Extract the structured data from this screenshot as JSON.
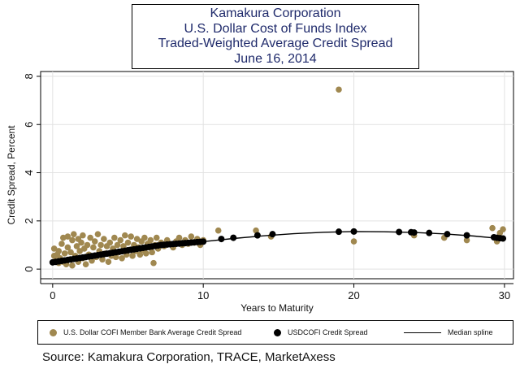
{
  "colors": {
    "member": "#a08850",
    "cofi": "#000000",
    "spline": "#000000",
    "title": "#1f2a6b",
    "grid": "#e2e2e2"
  },
  "source": "Source: Kamakura Corporation, TRACE, MarketAxess",
  "chart_data": {
    "type": "scatter",
    "title": [
      "Kamakura Corporation",
      "U.S. Dollar Cost of Funds Index",
      "Traded-Weighted Average Credit Spread",
      "June 16, 2014"
    ],
    "xlabel": "Years to Maturity",
    "ylabel": "Credit Spread, Percent",
    "xlim": [
      -0.8,
      30.6
    ],
    "ylim": [
      -0.4,
      8.2
    ],
    "xticks": [
      0,
      10,
      20,
      30
    ],
    "yticks": [
      0,
      2,
      4,
      6,
      8
    ],
    "grid": true,
    "legend_position": "bottom",
    "legend": [
      "U.S. Dollar COFI Member Bank Average Credit Spread",
      "USDCOFI Credit Spread",
      "Median spline"
    ],
    "series": [
      {
        "name": "U.S. Dollar COFI Member Bank Average Credit Spread",
        "type": "scatter",
        "points": [
          [
            0.1,
            0.85
          ],
          [
            0.1,
            0.55
          ],
          [
            0.2,
            0.35
          ],
          [
            0.3,
            0.6
          ],
          [
            0.4,
            0.25
          ],
          [
            0.4,
            0.75
          ],
          [
            0.5,
            0.45
          ],
          [
            0.6,
            1.05
          ],
          [
            0.7,
            0.3
          ],
          [
            0.7,
            1.3
          ],
          [
            0.8,
            0.65
          ],
          [
            0.9,
            0.2
          ],
          [
            1.0,
            0.9
          ],
          [
            1.0,
            1.35
          ],
          [
            1.1,
            0.4
          ],
          [
            1.2,
            0.7
          ],
          [
            1.3,
            1.2
          ],
          [
            1.3,
            0.15
          ],
          [
            1.4,
            1.45
          ],
          [
            1.5,
            0.55
          ],
          [
            1.6,
            0.95
          ],
          [
            1.7,
            1.25
          ],
          [
            1.7,
            0.3
          ],
          [
            1.8,
            0.75
          ],
          [
            1.9,
            1.1
          ],
          [
            2.0,
            0.45
          ],
          [
            2.0,
            1.4
          ],
          [
            2.1,
            0.85
          ],
          [
            2.2,
            0.2
          ],
          [
            2.3,
            1.0
          ],
          [
            2.4,
            0.6
          ],
          [
            2.5,
            1.3
          ],
          [
            2.6,
            0.35
          ],
          [
            2.7,
            0.9
          ],
          [
            2.8,
            1.15
          ],
          [
            2.9,
            0.5
          ],
          [
            3.0,
            1.45
          ],
          [
            3.1,
            0.75
          ],
          [
            3.2,
            1.0
          ],
          [
            3.3,
            0.4
          ],
          [
            3.4,
            1.25
          ],
          [
            3.5,
            0.65
          ],
          [
            3.6,
            0.95
          ],
          [
            3.7,
            0.3
          ],
          [
            3.8,
            1.1
          ],
          [
            3.9,
            0.55
          ],
          [
            4.0,
            0.85
          ],
          [
            4.1,
            1.3
          ],
          [
            4.2,
            0.5
          ],
          [
            4.3,
            1.0
          ],
          [
            4.4,
            0.7
          ],
          [
            4.5,
            1.2
          ],
          [
            4.6,
            0.45
          ],
          [
            4.7,
            0.95
          ],
          [
            4.8,
            1.4
          ],
          [
            4.9,
            0.6
          ],
          [
            5.0,
            1.1
          ],
          [
            5.1,
            0.8
          ],
          [
            5.2,
            1.35
          ],
          [
            5.3,
            0.55
          ],
          [
            5.4,
            1.0
          ],
          [
            5.5,
            0.75
          ],
          [
            5.6,
            1.25
          ],
          [
            5.7,
            0.9
          ],
          [
            5.8,
            0.6
          ],
          [
            5.9,
            1.15
          ],
          [
            6.0,
            0.8
          ],
          [
            6.1,
            1.3
          ],
          [
            6.2,
            0.65
          ],
          [
            6.3,
            1.05
          ],
          [
            6.4,
            0.9
          ],
          [
            6.5,
            1.2
          ],
          [
            6.6,
            0.7
          ],
          [
            6.7,
            0.25
          ],
          [
            6.8,
            1.0
          ],
          [
            6.9,
            1.3
          ],
          [
            7.0,
            0.85
          ],
          [
            7.2,
            1.1
          ],
          [
            7.4,
            0.95
          ],
          [
            7.6,
            1.2
          ],
          [
            7.8,
            1.05
          ],
          [
            8.0,
            0.9
          ],
          [
            8.2,
            1.15
          ],
          [
            8.4,
            1.3
          ],
          [
            8.6,
            1.0
          ],
          [
            8.8,
            1.2
          ],
          [
            9.0,
            1.05
          ],
          [
            9.2,
            1.35
          ],
          [
            9.4,
            1.1
          ],
          [
            9.6,
            1.25
          ],
          [
            9.8,
            1.0
          ],
          [
            10.0,
            1.2
          ],
          [
            11.0,
            1.6
          ],
          [
            13.5,
            1.6
          ],
          [
            14.5,
            1.35
          ],
          [
            19.0,
            7.45
          ],
          [
            20.0,
            1.15
          ],
          [
            24.0,
            1.4
          ],
          [
            26.0,
            1.3
          ],
          [
            27.5,
            1.2
          ],
          [
            29.2,
            1.7
          ],
          [
            29.5,
            1.15
          ],
          [
            29.7,
            1.5
          ],
          [
            29.9,
            1.65
          ]
        ]
      },
      {
        "name": "USDCOFI Credit Spread",
        "type": "scatter",
        "points": [
          [
            0.0,
            0.28
          ],
          [
            0.2,
            0.3
          ],
          [
            0.4,
            0.32
          ],
          [
            0.6,
            0.34
          ],
          [
            0.8,
            0.36
          ],
          [
            1.0,
            0.38
          ],
          [
            1.2,
            0.4
          ],
          [
            1.4,
            0.42
          ],
          [
            1.6,
            0.44
          ],
          [
            1.8,
            0.46
          ],
          [
            2.0,
            0.48
          ],
          [
            2.2,
            0.5
          ],
          [
            2.4,
            0.52
          ],
          [
            2.6,
            0.54
          ],
          [
            2.8,
            0.56
          ],
          [
            3.0,
            0.58
          ],
          [
            3.2,
            0.6
          ],
          [
            3.4,
            0.62
          ],
          [
            3.6,
            0.64
          ],
          [
            3.8,
            0.66
          ],
          [
            4.0,
            0.68
          ],
          [
            4.2,
            0.7
          ],
          [
            4.4,
            0.72
          ],
          [
            4.6,
            0.74
          ],
          [
            4.8,
            0.76
          ],
          [
            5.0,
            0.78
          ],
          [
            5.2,
            0.8
          ],
          [
            5.4,
            0.82
          ],
          [
            5.6,
            0.84
          ],
          [
            5.8,
            0.86
          ],
          [
            6.0,
            0.88
          ],
          [
            6.2,
            0.9
          ],
          [
            6.4,
            0.92
          ],
          [
            6.6,
            0.94
          ],
          [
            6.8,
            0.96
          ],
          [
            7.0,
            0.98
          ],
          [
            7.2,
            1.0
          ],
          [
            7.4,
            1.01
          ],
          [
            7.6,
            1.02
          ],
          [
            7.8,
            1.03
          ],
          [
            8.0,
            1.04
          ],
          [
            8.2,
            1.05
          ],
          [
            8.4,
            1.06
          ],
          [
            8.6,
            1.07
          ],
          [
            8.8,
            1.08
          ],
          [
            9.0,
            1.09
          ],
          [
            9.2,
            1.1
          ],
          [
            9.4,
            1.11
          ],
          [
            9.6,
            1.12
          ],
          [
            9.8,
            1.13
          ],
          [
            10.0,
            1.14
          ],
          [
            11.2,
            1.25
          ],
          [
            12.0,
            1.3
          ],
          [
            13.6,
            1.4
          ],
          [
            14.6,
            1.45
          ],
          [
            19.0,
            1.55
          ],
          [
            20.0,
            1.56
          ],
          [
            23.0,
            1.54
          ],
          [
            23.8,
            1.53
          ],
          [
            24.0,
            1.52
          ],
          [
            25.0,
            1.5
          ],
          [
            26.2,
            1.45
          ],
          [
            27.5,
            1.4
          ],
          [
            29.3,
            1.32
          ],
          [
            29.5,
            1.3
          ],
          [
            29.7,
            1.28
          ],
          [
            29.9,
            1.27
          ]
        ]
      },
      {
        "name": "Median spline",
        "type": "line",
        "points": [
          [
            0,
            0.28
          ],
          [
            1,
            0.37
          ],
          [
            2,
            0.47
          ],
          [
            3,
            0.57
          ],
          [
            4,
            0.67
          ],
          [
            5,
            0.77
          ],
          [
            6,
            0.87
          ],
          [
            7,
            0.97
          ],
          [
            8,
            1.04
          ],
          [
            9,
            1.09
          ],
          [
            10,
            1.14
          ],
          [
            12,
            1.27
          ],
          [
            14,
            1.38
          ],
          [
            16,
            1.47
          ],
          [
            18,
            1.53
          ],
          [
            20,
            1.56
          ],
          [
            22,
            1.55
          ],
          [
            24,
            1.52
          ],
          [
            26,
            1.46
          ],
          [
            28,
            1.37
          ],
          [
            30,
            1.25
          ]
        ]
      }
    ]
  }
}
